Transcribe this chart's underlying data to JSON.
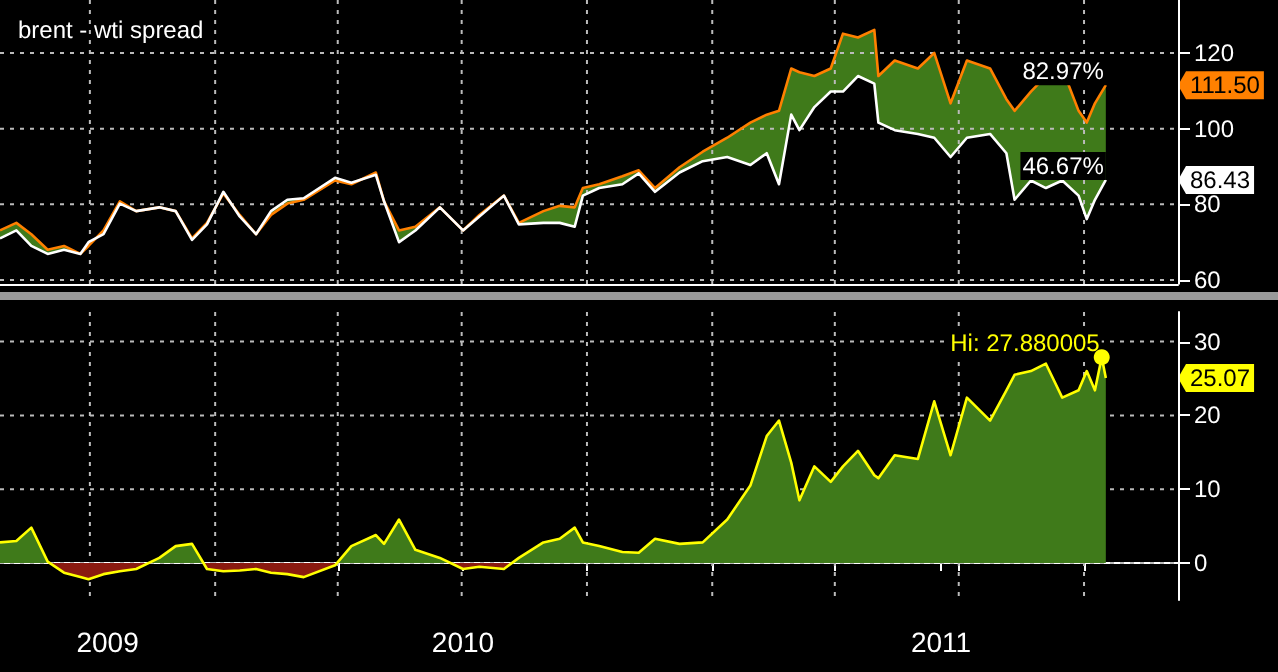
{
  "chart_data": [
    {
      "type": "line",
      "title": "brent - wti spread",
      "x": [
        "2009-07-27",
        "2009-08-08",
        "2009-08-19",
        "2009-08-31",
        "2009-09-12",
        "2009-09-24",
        "2009-09-30",
        "2009-10-11",
        "2009-10-23",
        "2009-11-04",
        "2009-11-21",
        "2009-12-03",
        "2009-12-15",
        "2009-12-26",
        "2010-01-07",
        "2010-01-19",
        "2010-01-31",
        "2010-02-11",
        "2010-02-23",
        "2010-03-07",
        "2010-03-30",
        "2010-04-11",
        "2010-04-29",
        "2010-05-05",
        "2010-05-16",
        "2010-05-28",
        "2010-06-15",
        "2010-07-02",
        "2010-07-14",
        "2010-08-01",
        "2010-08-12",
        "2010-08-30",
        "2010-09-11",
        "2010-09-22",
        "2010-09-28",
        "2010-10-10",
        "2010-10-27",
        "2010-11-08",
        "2010-11-20",
        "2010-12-08",
        "2010-12-25",
        "2011-01-12",
        "2011-01-29",
        "2011-02-10",
        "2011-02-19",
        "2011-02-28",
        "2011-03-06",
        "2011-03-17",
        "2011-03-29",
        "2011-04-07",
        "2011-04-18",
        "2011-04-30",
        "2011-05-03",
        "2011-05-15",
        "2011-06-01",
        "2011-06-13",
        "2011-06-25",
        "2011-07-07",
        "2011-07-24",
        "2011-08-05",
        "2011-08-11",
        "2011-08-23",
        "2011-09-03",
        "2011-09-15",
        "2011-09-27",
        "2011-10-03",
        "2011-10-09",
        "2011-10-17"
      ],
      "series": [
        {
          "type": "area",
          "color": "#ff8000",
          "values": [
            73.1,
            75.1,
            72.1,
            68.0,
            69.0,
            66.9,
            69.0,
            73.1,
            80.8,
            78.2,
            79.2,
            78.2,
            71.0,
            75.1,
            82.9,
            77.2,
            72.1,
            77.2,
            80.2,
            81.2,
            86.3,
            85.3,
            88.4,
            80.8,
            73.1,
            74.1,
            79.2,
            73.1,
            77.2,
            82.3,
            75.1,
            78.2,
            79.6,
            79.2,
            84.3,
            85.3,
            87.4,
            89.0,
            84.3,
            89.8,
            93.9,
            97.6,
            101.6,
            103.7,
            104.7,
            115.9,
            114.9,
            113.9,
            115.9,
            125.1,
            124.1,
            126.1,
            113.9,
            118.0,
            115.9,
            120.0,
            106.7,
            118.0,
            115.9,
            107.8,
            104.7,
            109.8,
            113.9,
            115.9,
            104.7,
            101.6,
            106.7,
            111.5
          ]
        },
        {
          "color": "#ffffff",
          "values": [
            71.0,
            73.1,
            69.0,
            66.9,
            68.0,
            66.9,
            70.0,
            72.1,
            80.2,
            78.2,
            79.2,
            78.2,
            70.6,
            74.7,
            83.3,
            76.8,
            72.1,
            78.2,
            81.2,
            81.6,
            87.0,
            85.7,
            87.8,
            80.8,
            70.0,
            73.1,
            79.2,
            73.1,
            76.8,
            82.3,
            74.7,
            75.1,
            75.1,
            74.1,
            82.3,
            84.3,
            85.3,
            88.2,
            83.3,
            88.4,
            91.4,
            92.5,
            90.4,
            93.5,
            85.3,
            103.7,
            99.6,
            105.7,
            109.8,
            109.8,
            113.9,
            111.9,
            101.6,
            99.6,
            98.6,
            97.6,
            92.5,
            97.6,
            98.6,
            93.5,
            81.2,
            86.3,
            84.3,
            86.3,
            82.3,
            76.1,
            81.2,
            86.43
          ]
        }
      ],
      "xlim": [
        "2009-07-27",
        "2011-12-09"
      ],
      "xticks": [
        {
          "value": "2009-10-01",
          "label": null
        },
        {
          "value": "2010-01-01",
          "label": null
        },
        {
          "value": "2010-04-01",
          "label": null
        },
        {
          "value": "2010-07-01",
          "label": null
        },
        {
          "value": "2010-10-01",
          "label": null
        },
        {
          "value": "2011-01-01",
          "label": null
        },
        {
          "value": "2011-04-01",
          "label": null
        },
        {
          "value": "2011-07-01",
          "label": null
        },
        {
          "value": "2011-10-01",
          "label": null
        }
      ],
      "ylim": [
        59,
        134
      ],
      "yticks": [
        60,
        80,
        100,
        120
      ],
      "tick_labels": "y",
      "grid": true,
      "marker": "none",
      "annotations": [
        {
          "text": "82.97%",
          "x": "2011-10-17",
          "y": 111.5
        },
        {
          "text": "46.67%",
          "x": "2011-10-17",
          "y": 86.43
        },
        {
          "text": "111.50",
          "y": 111.5
        },
        {
          "text": "86.43",
          "y": 86.43
        }
      ]
    },
    {
      "type": "area",
      "x": [
        "2009-07-27",
        "2009-08-08",
        "2009-08-19",
        "2009-08-31",
        "2009-09-12",
        "2009-09-24",
        "2009-09-30",
        "2009-10-11",
        "2009-10-23",
        "2009-11-04",
        "2009-11-21",
        "2009-12-03",
        "2009-12-15",
        "2009-12-26",
        "2010-01-07",
        "2010-01-19",
        "2010-01-31",
        "2010-02-11",
        "2010-02-23",
        "2010-03-07",
        "2010-03-30",
        "2010-04-11",
        "2010-04-29",
        "2010-05-05",
        "2010-05-16",
        "2010-05-28",
        "2010-06-15",
        "2010-07-02",
        "2010-07-14",
        "2010-08-01",
        "2010-08-12",
        "2010-08-30",
        "2010-09-11",
        "2010-09-22",
        "2010-09-28",
        "2010-10-10",
        "2010-10-27",
        "2010-11-08",
        "2010-11-20",
        "2010-12-08",
        "2010-12-25",
        "2011-01-12",
        "2011-01-29",
        "2011-02-10",
        "2011-02-19",
        "2011-02-28",
        "2011-03-06",
        "2011-03-17",
        "2011-03-29",
        "2011-04-07",
        "2011-04-18",
        "2011-04-30",
        "2011-05-03",
        "2011-05-15",
        "2011-06-01",
        "2011-06-13",
        "2011-06-25",
        "2011-07-07",
        "2011-07-24",
        "2011-08-05",
        "2011-08-11",
        "2011-08-23",
        "2011-09-03",
        "2011-09-15",
        "2011-09-27",
        "2011-10-03",
        "2011-10-09",
        "2011-10-14",
        "2011-10-17"
      ],
      "series": [
        {
          "color": "#ffff00",
          "values": [
            2.8,
            3,
            4.8,
            0.2,
            -1.3,
            -1.9,
            -2.2,
            -1.5,
            -1.1,
            -0.8,
            0.7,
            2.3,
            2.6,
            -0.8,
            -1.1,
            -1.0,
            -0.8,
            -1.3,
            -1.5,
            -1.9,
            -0.3,
            2.3,
            3.8,
            2.6,
            5.9,
            1.8,
            0.7,
            -0.8,
            -0.5,
            -0.8,
            0.7,
            2.8,
            3.3,
            4.8,
            2.8,
            2.3,
            1.5,
            1.4,
            3.3,
            2.6,
            2.8,
            5.9,
            10.5,
            17.2,
            19.3,
            13.6,
            8.5,
            13.1,
            11.0,
            13.1,
            15.2,
            11.9,
            11.5,
            14.6,
            14.1,
            21.9,
            14.6,
            22.4,
            19.3,
            23.4,
            25.5,
            26,
            27,
            22.4,
            23.4,
            26,
            23.4,
            27.88,
            25.07
          ]
        }
      ],
      "xlim": [
        "2009-07-27",
        "2011-12-09"
      ],
      "xticks": [
        {
          "value": "2009-10-01",
          "label": null
        },
        {
          "value": "2009-10-14",
          "label": "2009"
        },
        {
          "value": "2010-01-01",
          "label": null
        },
        {
          "value": "2010-04-01",
          "label": null
        },
        {
          "value": "2010-07-01",
          "label": null
        },
        {
          "value": "2010-07-02",
          "label": "2010"
        },
        {
          "value": "2010-10-01",
          "label": null
        },
        {
          "value": "2011-01-01",
          "label": null
        },
        {
          "value": "2011-04-01",
          "label": null
        },
        {
          "value": "2011-06-18",
          "label": "2011"
        },
        {
          "value": "2011-07-01",
          "label": null
        },
        {
          "value": "2011-10-01",
          "label": null
        }
      ],
      "ylim": [
        -5,
        34
      ],
      "yticks": [
        0,
        10,
        20,
        30
      ],
      "grid": true,
      "marker": "none",
      "annotations": [
        {
          "text": "Hi: 27.880005",
          "x": "2011-10-14",
          "y": 27.88
        },
        {
          "text": "25.07",
          "y": 25.07
        }
      ]
    }
  ]
}
